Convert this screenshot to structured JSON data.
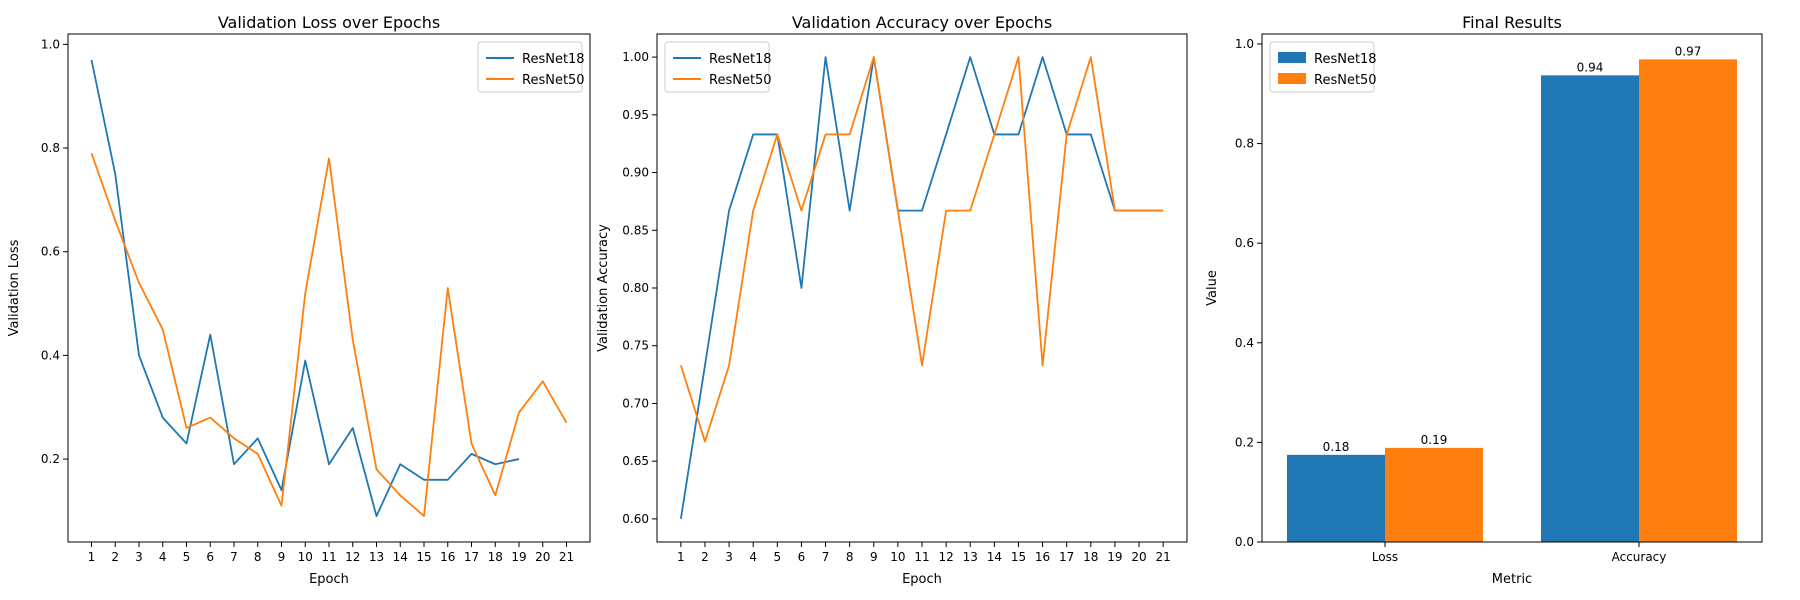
{
  "colors": {
    "resnet18": "#1f77b4",
    "resnet50": "#ff7f0e"
  },
  "chart_data": [
    {
      "type": "line",
      "title": "Validation Loss over Epochs",
      "xlabel": "Epoch",
      "ylabel": "Validation Loss",
      "x": [
        1,
        2,
        3,
        4,
        5,
        6,
        7,
        8,
        9,
        10,
        11,
        12,
        13,
        14,
        15,
        16,
        17,
        18,
        19,
        20,
        21
      ],
      "xticks": [
        "1",
        "2",
        "3",
        "4",
        "5",
        "6",
        "7",
        "8",
        "9",
        "10",
        "11",
        "12",
        "13",
        "14",
        "15",
        "16",
        "17",
        "18",
        "19",
        "20",
        "21"
      ],
      "yticks": [
        "0.2",
        "0.4",
        "0.6",
        "0.8",
        "1.0"
      ],
      "ylim": [
        0.04,
        1.02
      ],
      "legend": "top-right",
      "series": [
        {
          "name": "ResNet18",
          "x": [
            1,
            2,
            3,
            4,
            5,
            6,
            7,
            8,
            9,
            10,
            11,
            12,
            13,
            14,
            15,
            16,
            17,
            18,
            19
          ],
          "values": [
            0.97,
            0.75,
            0.4,
            0.28,
            0.23,
            0.44,
            0.19,
            0.24,
            0.14,
            0.39,
            0.19,
            0.26,
            0.09,
            0.19,
            0.16,
            0.16,
            0.21,
            0.19,
            0.2
          ]
        },
        {
          "name": "ResNet50",
          "x": [
            1,
            2,
            3,
            4,
            5,
            6,
            7,
            8,
            9,
            10,
            11,
            12,
            13,
            14,
            15,
            16,
            17,
            18,
            19,
            20,
            21
          ],
          "values": [
            0.79,
            0.66,
            0.54,
            0.45,
            0.26,
            0.28,
            0.24,
            0.21,
            0.11,
            0.52,
            0.78,
            0.43,
            0.18,
            0.13,
            0.09,
            0.53,
            0.23,
            0.13,
            0.29,
            0.35,
            0.27
          ]
        }
      ]
    },
    {
      "type": "line",
      "title": "Validation Accuracy over Epochs",
      "xlabel": "Epoch",
      "ylabel": "Validation Accuracy",
      "x": [
        1,
        2,
        3,
        4,
        5,
        6,
        7,
        8,
        9,
        10,
        11,
        12,
        13,
        14,
        15,
        16,
        17,
        18,
        19,
        20,
        21
      ],
      "xticks": [
        "1",
        "2",
        "3",
        "4",
        "5",
        "6",
        "7",
        "8",
        "9",
        "10",
        "11",
        "12",
        "13",
        "14",
        "15",
        "16",
        "17",
        "18",
        "19",
        "20",
        "21"
      ],
      "yticks": [
        "0.60",
        "0.65",
        "0.70",
        "0.75",
        "0.80",
        "0.85",
        "0.90",
        "0.95",
        "1.00"
      ],
      "ylim": [
        0.58,
        1.02
      ],
      "legend": "top-left",
      "series": [
        {
          "name": "ResNet18",
          "x": [
            1,
            2,
            3,
            4,
            5,
            6,
            7,
            8,
            9,
            10,
            11,
            12,
            13,
            14,
            15,
            16,
            17,
            18,
            19,
            20,
            21
          ],
          "values": [
            0.6,
            0.733,
            0.867,
            0.933,
            0.933,
            0.8,
            1.0,
            0.867,
            1.0,
            0.867,
            0.867,
            0.933,
            1.0,
            0.933,
            0.933,
            1.0,
            0.933,
            0.933,
            0.867,
            0.867,
            0.867
          ]
        },
        {
          "name": "ResNet50",
          "x": [
            1,
            2,
            3,
            4,
            5,
            6,
            7,
            8,
            9,
            10,
            11,
            12,
            13,
            14,
            15,
            16,
            17,
            18,
            19,
            20,
            21
          ],
          "values": [
            0.733,
            0.667,
            0.733,
            0.867,
            0.933,
            0.867,
            0.933,
            0.933,
            1.0,
            0.867,
            0.733,
            0.867,
            0.867,
            0.933,
            1.0,
            0.733,
            0.933,
            1.0,
            0.867,
            0.867,
            0.867
          ]
        }
      ]
    },
    {
      "type": "bar",
      "title": "Final Results",
      "xlabel": "Metric",
      "ylabel": "Value",
      "categories": [
        "Loss",
        "Accuracy"
      ],
      "yticks": [
        "0.0",
        "0.2",
        "0.4",
        "0.6",
        "0.8",
        "1.0"
      ],
      "ylim": [
        0,
        1.02
      ],
      "legend": "top-left",
      "series": [
        {
          "name": "ResNet18",
          "values": [
            0.175,
            0.937
          ],
          "labels": [
            "0.18",
            "0.94"
          ]
        },
        {
          "name": "ResNet50",
          "values": [
            0.189,
            0.969
          ],
          "labels": [
            "0.19",
            "0.97"
          ]
        }
      ]
    }
  ]
}
